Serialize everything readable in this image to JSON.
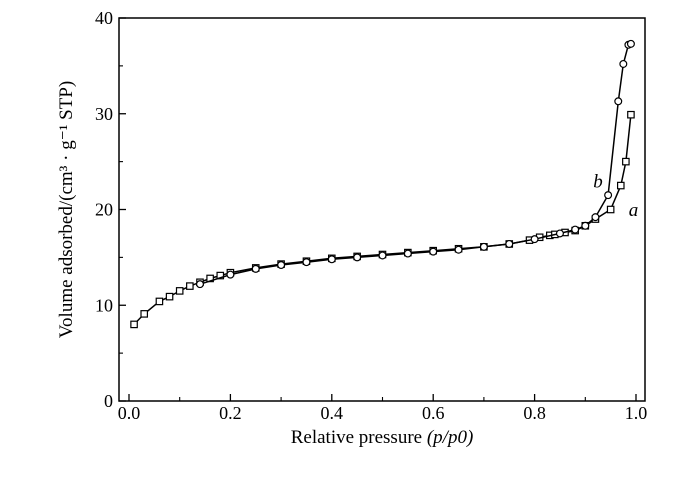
{
  "chart_data": {
    "type": "line",
    "xlabel": "Relative pressure",
    "xlabel_var": "(p/p0)",
    "ylabel": "Volume adsorbed/(cm³ · g⁻¹ STP)",
    "xlim": [
      0,
      1.0
    ],
    "ylim": [
      0,
      40
    ],
    "x_ticks": [
      0.0,
      0.2,
      0.4,
      0.6,
      0.8,
      1.0
    ],
    "x_tick_labels": [
      "0.0",
      "0.2",
      "0.4",
      "0.6",
      "0.8",
      "1.0"
    ],
    "y_ticks": [
      0,
      10,
      20,
      30,
      40
    ],
    "y_tick_labels": [
      "0",
      "10",
      "20",
      "30",
      "40"
    ],
    "grid": false,
    "series": [
      {
        "name": "a",
        "marker": "square",
        "x": [
          0.01,
          0.03,
          0.06,
          0.08,
          0.1,
          0.12,
          0.14,
          0.16,
          0.18,
          0.2,
          0.25,
          0.3,
          0.35,
          0.4,
          0.45,
          0.5,
          0.55,
          0.6,
          0.65,
          0.7,
          0.75,
          0.79,
          0.81,
          0.83,
          0.84,
          0.86,
          0.88,
          0.9,
          0.92,
          0.95,
          0.97,
          0.98,
          0.99
        ],
        "y": [
          8.0,
          9.1,
          10.4,
          10.9,
          11.5,
          12.0,
          12.4,
          12.8,
          13.1,
          13.4,
          13.9,
          14.3,
          14.6,
          14.9,
          15.1,
          15.3,
          15.5,
          15.7,
          15.9,
          16.1,
          16.4,
          16.8,
          17.1,
          17.3,
          17.4,
          17.6,
          17.8,
          18.3,
          19.0,
          20.0,
          22.5,
          25.0,
          29.9
        ]
      },
      {
        "name": "b",
        "marker": "circle",
        "x": [
          0.14,
          0.2,
          0.25,
          0.3,
          0.35,
          0.4,
          0.45,
          0.5,
          0.55,
          0.6,
          0.65,
          0.7,
          0.75,
          0.8,
          0.85,
          0.88,
          0.9,
          0.92,
          0.945,
          0.965,
          0.975,
          0.985,
          0.99
        ],
        "y": [
          12.2,
          13.2,
          13.8,
          14.2,
          14.5,
          14.8,
          15.0,
          15.2,
          15.4,
          15.6,
          15.8,
          16.1,
          16.4,
          16.9,
          17.5,
          17.9,
          18.3,
          19.2,
          21.5,
          31.3,
          35.2,
          37.2,
          37.3
        ]
      }
    ]
  }
}
